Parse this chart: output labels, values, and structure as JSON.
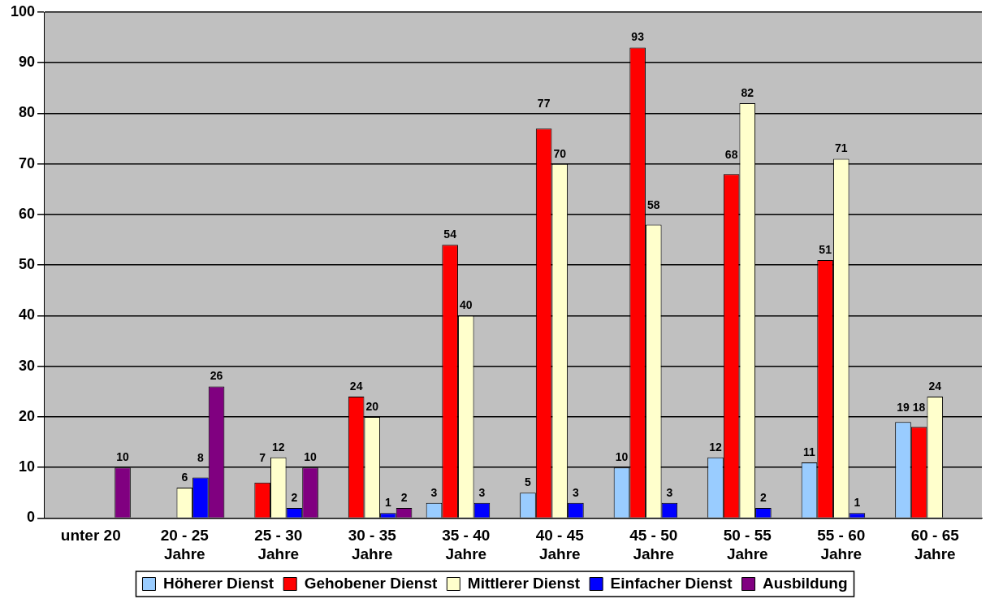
{
  "chart_data": {
    "type": "bar",
    "categories": [
      "unter 20",
      "20 - 25\nJahre",
      "25 - 30\nJahre",
      "30 - 35\nJahre",
      "35 - 40\nJahre",
      "40 - 45\nJahre",
      "45 - 50\nJahre",
      "50 - 55\nJahre",
      "55 - 60\nJahre",
      "60 - 65\nJahre"
    ],
    "series": [
      {
        "name": "Höherer Dienst",
        "color": "#99ccff",
        "values": [
          null,
          null,
          null,
          null,
          3,
          5,
          10,
          12,
          11,
          19
        ]
      },
      {
        "name": "Gehobener Dienst",
        "color": "#ff0000",
        "values": [
          null,
          null,
          7,
          24,
          54,
          77,
          93,
          68,
          51,
          18
        ]
      },
      {
        "name": "Mittlerer Dienst",
        "color": "#ffffcc",
        "values": [
          null,
          6,
          12,
          20,
          40,
          70,
          58,
          82,
          71,
          24
        ]
      },
      {
        "name": "Einfacher Dienst",
        "color": "#0000ff",
        "values": [
          null,
          8,
          2,
          1,
          3,
          3,
          3,
          2,
          1,
          null
        ]
      },
      {
        "name": "Ausbildung",
        "color": "#800080",
        "values": [
          10,
          26,
          10,
          2,
          null,
          null,
          null,
          null,
          null,
          null
        ]
      }
    ],
    "ylim": [
      0,
      100
    ],
    "yticks": [
      0,
      10,
      20,
      30,
      40,
      50,
      60,
      70,
      80,
      90,
      100
    ],
    "grid": "y",
    "legend": "bottom",
    "data_labels": true
  }
}
